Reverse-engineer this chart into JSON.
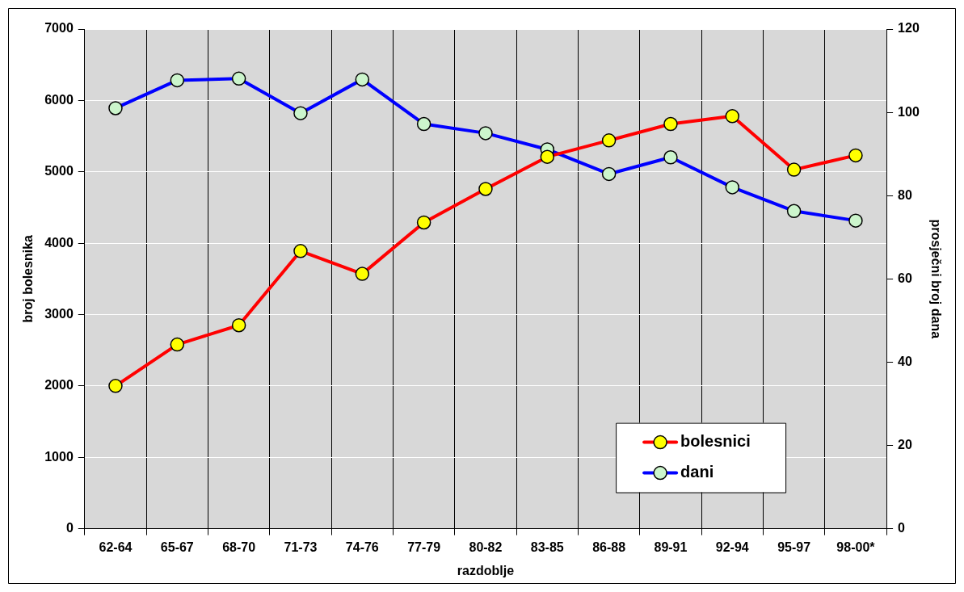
{
  "chart_data": {
    "type": "line",
    "xlabel": "razdoblje",
    "ylabel": "broj bolesnika",
    "y2label": "prosječni broj dana",
    "categories": [
      "62-64",
      "65-67",
      "68-70",
      "71-73",
      "74-76",
      "77-79",
      "80-82",
      "83-85",
      "86-88",
      "89-91",
      "92-94",
      "95-97",
      "98-00*"
    ],
    "series": [
      {
        "name": "bolesnici",
        "color": "#ff0000",
        "values": [
          2000,
          2580,
          2850,
          3890,
          3570,
          4290,
          4760,
          5210,
          5440,
          5670,
          5780,
          5030,
          5230
        ]
      },
      {
        "name": "dani",
        "color": "#0000ff",
        "axis": "y2",
        "values": [
          101,
          107.7,
          108.1,
          99.8,
          107.9,
          97.2,
          95,
          91.1,
          85.2,
          89.2,
          82,
          76.3,
          74
        ]
      }
    ],
    "ylim": [
      0,
      7000
    ],
    "yticks": [
      0,
      1000,
      2000,
      3000,
      4000,
      5000,
      6000,
      7000
    ],
    "y2lim": [
      0,
      120
    ],
    "y2ticks": [
      0,
      20,
      40,
      60,
      80,
      100,
      120
    ],
    "grid": true,
    "legend": "bottom right",
    "marker": "circle",
    "line_style": "solid"
  }
}
